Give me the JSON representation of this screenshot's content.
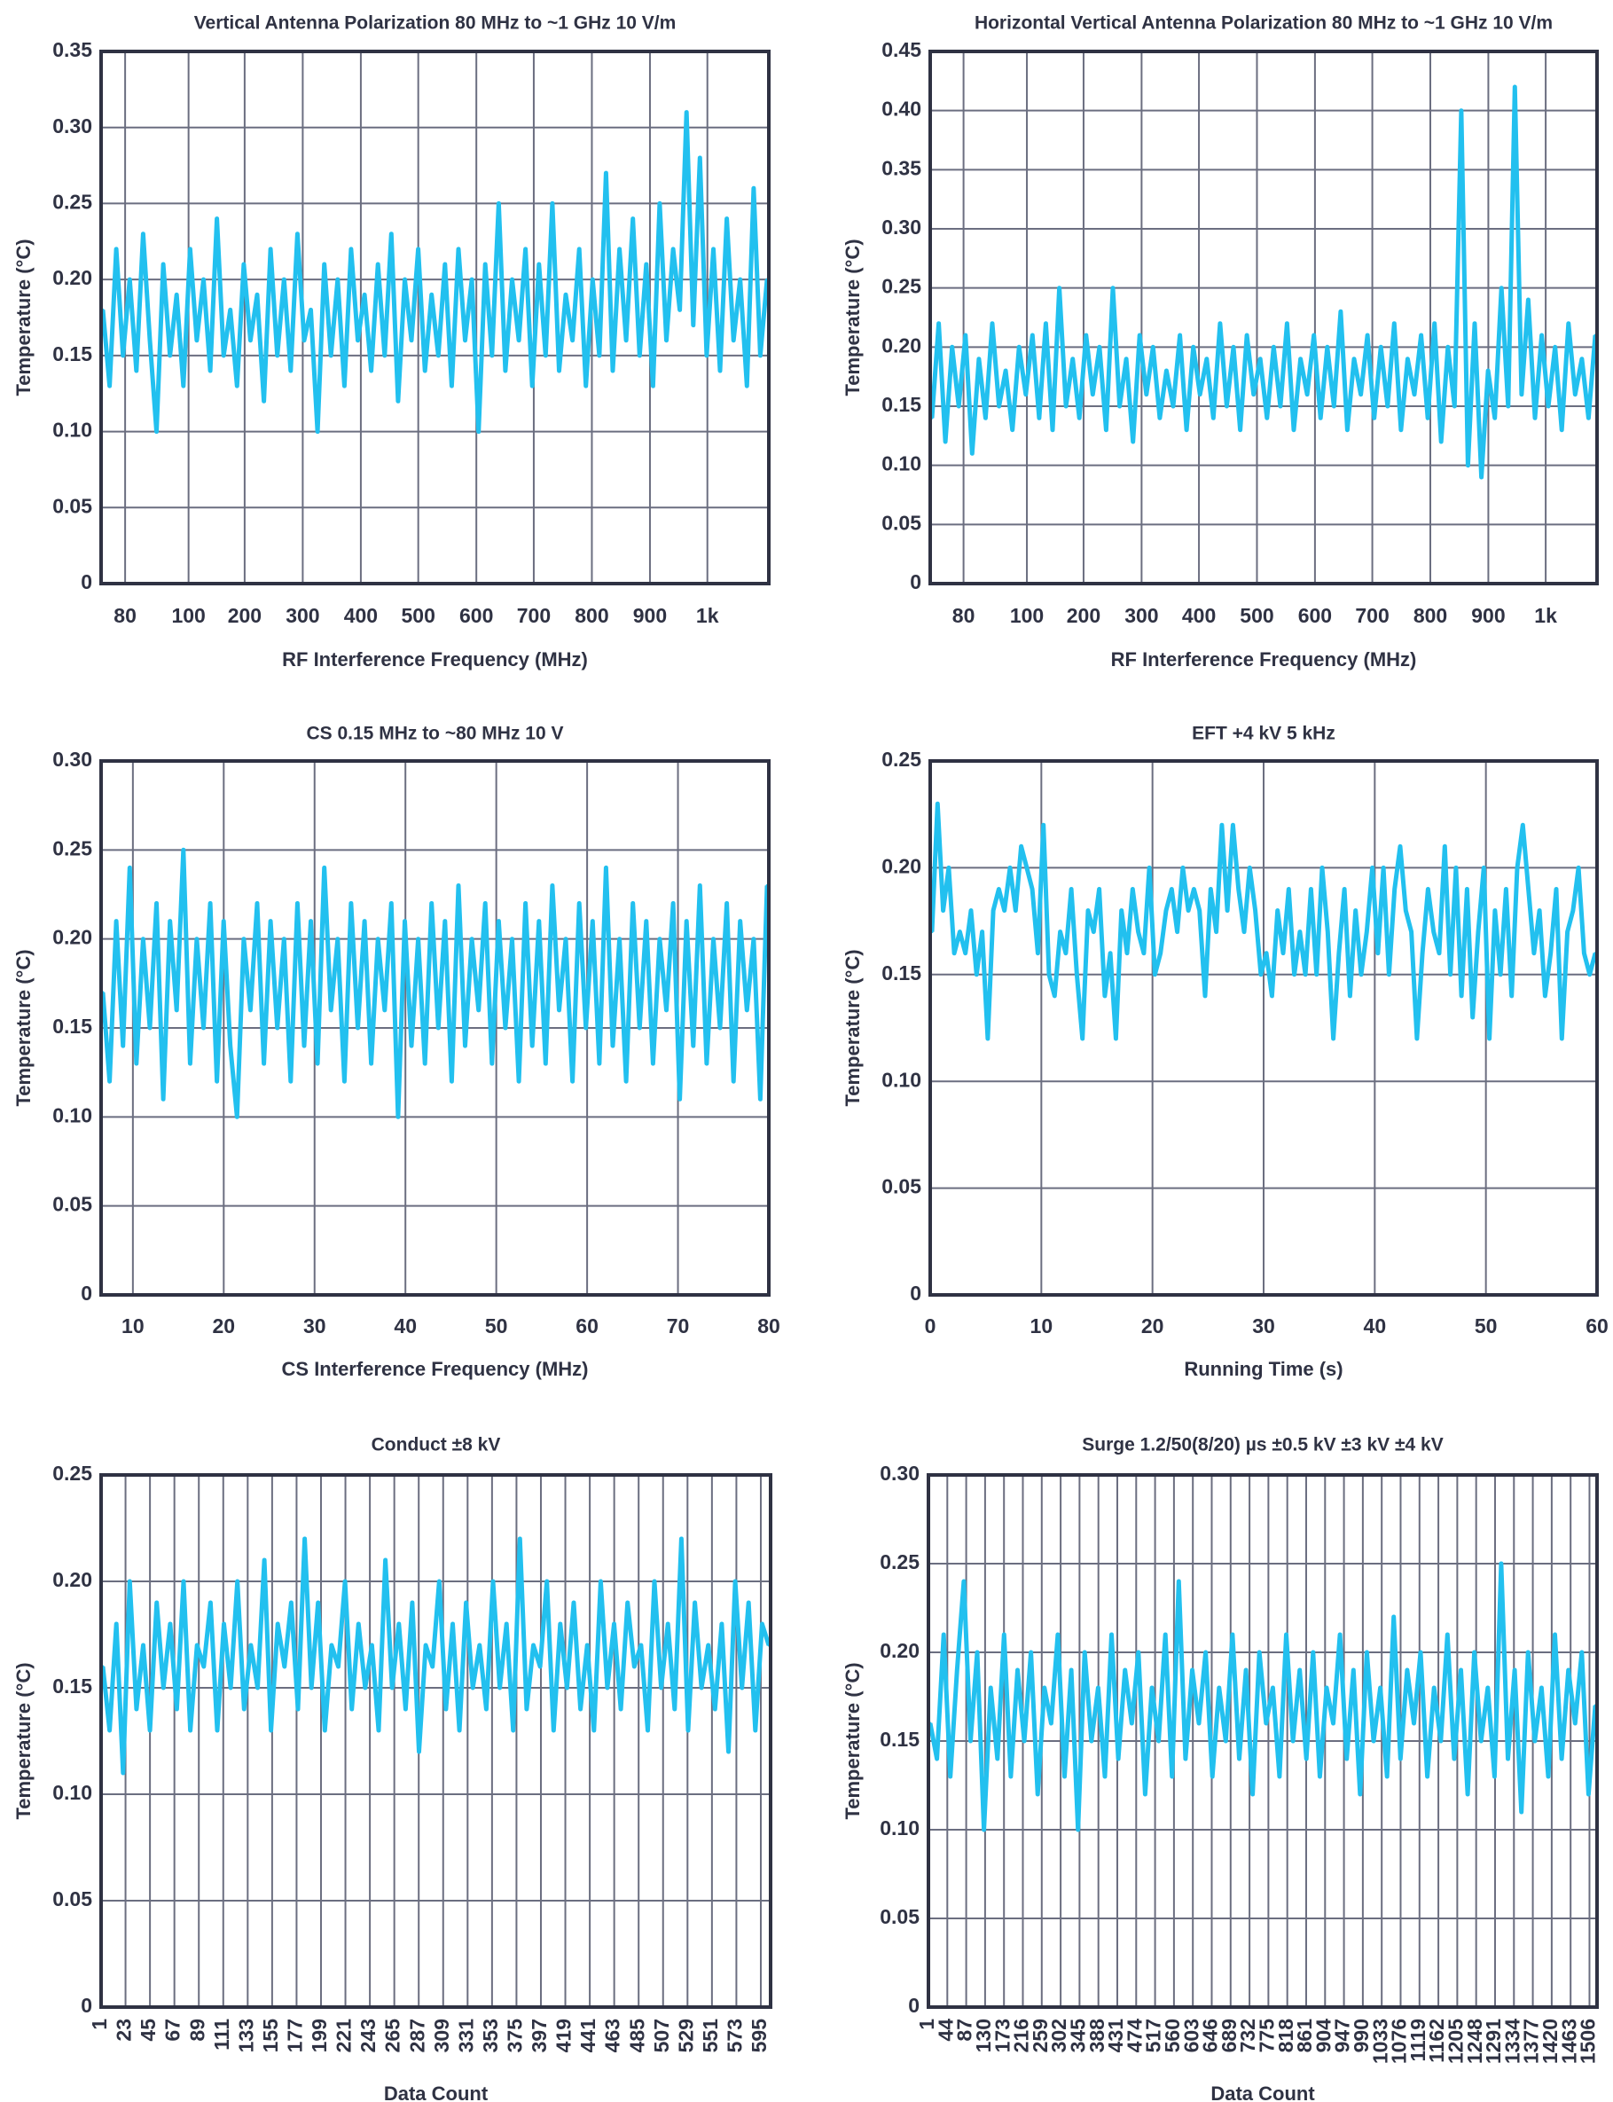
{
  "colors": {
    "series": "#22c0ef",
    "grid": "#6b6e80",
    "axis": "#2f3243"
  },
  "chart_data": [
    {
      "type": "line",
      "title": "Vertical Antenna Polarization 80 MHz to ~1 GHz 10 V/m",
      "xlabel": "RF Interference Frequency (MHz)",
      "ylabel": "Temperature (°C)",
      "x_ticks": [
        "80",
        "100",
        "200",
        "300",
        "400",
        "500",
        "600",
        "700",
        "800",
        "900",
        "1k"
      ],
      "y_ticks": [
        "0",
        "0.05",
        "0.10",
        "0.15",
        "0.20",
        "0.25",
        "0.30",
        "0.35"
      ],
      "ylim": [
        0,
        0.35
      ],
      "grid": true,
      "values": [
        0.18,
        0.13,
        0.22,
        0.15,
        0.2,
        0.14,
        0.23,
        0.16,
        0.1,
        0.21,
        0.15,
        0.19,
        0.13,
        0.22,
        0.16,
        0.2,
        0.14,
        0.24,
        0.15,
        0.18,
        0.13,
        0.21,
        0.16,
        0.19,
        0.12,
        0.22,
        0.15,
        0.2,
        0.14,
        0.23,
        0.16,
        0.18,
        0.1,
        0.21,
        0.15,
        0.2,
        0.13,
        0.22,
        0.16,
        0.19,
        0.14,
        0.21,
        0.15,
        0.23,
        0.12,
        0.2,
        0.16,
        0.22,
        0.14,
        0.19,
        0.15,
        0.21,
        0.13,
        0.22,
        0.16,
        0.2,
        0.1,
        0.21,
        0.15,
        0.25,
        0.14,
        0.2,
        0.16,
        0.22,
        0.13,
        0.21,
        0.15,
        0.25,
        0.14,
        0.19,
        0.16,
        0.22,
        0.13,
        0.2,
        0.15,
        0.27,
        0.14,
        0.22,
        0.16,
        0.24,
        0.15,
        0.21,
        0.13,
        0.25,
        0.16,
        0.22,
        0.18,
        0.31,
        0.17,
        0.28,
        0.15,
        0.22,
        0.14,
        0.24,
        0.16,
        0.2,
        0.13,
        0.26,
        0.15,
        0.2
      ]
    },
    {
      "type": "line",
      "title": "Horizontal Vertical Antenna Polarization 80 MHz to ~1 GHz 10 V/m",
      "xlabel": "RF Interference Frequency (MHz)",
      "ylabel": "Temperature (°C)",
      "x_ticks": [
        "80",
        "100",
        "200",
        "300",
        "400",
        "500",
        "600",
        "700",
        "800",
        "900",
        "1k"
      ],
      "y_ticks": [
        "0",
        "0.05",
        "0.10",
        "0.15",
        "0.20",
        "0.25",
        "0.30",
        "0.35",
        "0.40",
        "0.45"
      ],
      "ylim": [
        0,
        0.45
      ],
      "grid": true,
      "values": [
        0.14,
        0.22,
        0.12,
        0.2,
        0.15,
        0.21,
        0.11,
        0.19,
        0.14,
        0.22,
        0.15,
        0.18,
        0.13,
        0.2,
        0.16,
        0.21,
        0.14,
        0.22,
        0.13,
        0.25,
        0.15,
        0.19,
        0.14,
        0.21,
        0.16,
        0.2,
        0.13,
        0.25,
        0.15,
        0.19,
        0.12,
        0.21,
        0.16,
        0.2,
        0.14,
        0.18,
        0.15,
        0.21,
        0.13,
        0.2,
        0.16,
        0.19,
        0.14,
        0.22,
        0.15,
        0.2,
        0.13,
        0.21,
        0.16,
        0.19,
        0.14,
        0.2,
        0.15,
        0.22,
        0.13,
        0.19,
        0.16,
        0.21,
        0.14,
        0.2,
        0.15,
        0.23,
        0.13,
        0.19,
        0.16,
        0.21,
        0.14,
        0.2,
        0.15,
        0.22,
        0.13,
        0.19,
        0.16,
        0.21,
        0.14,
        0.22,
        0.12,
        0.2,
        0.15,
        0.4,
        0.1,
        0.22,
        0.09,
        0.18,
        0.14,
        0.25,
        0.15,
        0.42,
        0.16,
        0.24,
        0.14,
        0.21,
        0.15,
        0.2,
        0.13,
        0.22,
        0.16,
        0.19,
        0.14,
        0.21
      ]
    },
    {
      "type": "line",
      "title": "CS 0.15 MHz to ~80 MHz 10 V",
      "xlabel": "CS Interference Frequency (MHz)",
      "ylabel": "Temperature (°C)",
      "x_ticks": [
        "10",
        "20",
        "30",
        "40",
        "50",
        "60",
        "70",
        "80"
      ],
      "y_ticks": [
        "0",
        "0.05",
        "0.10",
        "0.15",
        "0.20",
        "0.25",
        "0.30"
      ],
      "xlim": [
        6.5,
        80
      ],
      "ylim": [
        0,
        0.3
      ],
      "grid": true,
      "values": [
        0.17,
        0.12,
        0.21,
        0.14,
        0.24,
        0.13,
        0.2,
        0.15,
        0.22,
        0.11,
        0.21,
        0.16,
        0.25,
        0.13,
        0.2,
        0.15,
        0.22,
        0.12,
        0.21,
        0.14,
        0.1,
        0.2,
        0.16,
        0.22,
        0.13,
        0.21,
        0.15,
        0.2,
        0.12,
        0.22,
        0.14,
        0.21,
        0.13,
        0.24,
        0.16,
        0.2,
        0.12,
        0.22,
        0.15,
        0.21,
        0.13,
        0.2,
        0.16,
        0.22,
        0.1,
        0.21,
        0.14,
        0.2,
        0.13,
        0.22,
        0.15,
        0.21,
        0.12,
        0.23,
        0.14,
        0.2,
        0.16,
        0.22,
        0.13,
        0.21,
        0.15,
        0.2,
        0.12,
        0.22,
        0.14,
        0.21,
        0.13,
        0.23,
        0.16,
        0.2,
        0.12,
        0.22,
        0.15,
        0.21,
        0.13,
        0.24,
        0.14,
        0.2,
        0.12,
        0.22,
        0.15,
        0.21,
        0.13,
        0.2,
        0.16,
        0.22,
        0.11,
        0.21,
        0.14,
        0.23,
        0.13,
        0.2,
        0.15,
        0.22,
        0.12,
        0.21,
        0.16,
        0.2,
        0.11,
        0.23
      ]
    },
    {
      "type": "line",
      "title": "EFT +4 kV 5 kHz",
      "xlabel": "Running Time (s)",
      "ylabel": "Temperature (°C)",
      "x_ticks": [
        "0",
        "10",
        "20",
        "30",
        "40",
        "50",
        "60"
      ],
      "y_ticks": [
        "0",
        "0.05",
        "0.10",
        "0.15",
        "0.20",
        "0.25"
      ],
      "xlim": [
        0,
        60
      ],
      "ylim": [
        0,
        0.25
      ],
      "grid": true,
      "values": [
        0.17,
        0.23,
        0.18,
        0.2,
        0.16,
        0.17,
        0.16,
        0.18,
        0.15,
        0.17,
        0.12,
        0.18,
        0.19,
        0.18,
        0.2,
        0.18,
        0.21,
        0.2,
        0.19,
        0.16,
        0.22,
        0.15,
        0.14,
        0.17,
        0.16,
        0.19,
        0.15,
        0.12,
        0.18,
        0.17,
        0.19,
        0.14,
        0.16,
        0.12,
        0.18,
        0.16,
        0.19,
        0.17,
        0.16,
        0.2,
        0.15,
        0.16,
        0.18,
        0.19,
        0.17,
        0.2,
        0.18,
        0.19,
        0.18,
        0.14,
        0.19,
        0.17,
        0.22,
        0.18,
        0.22,
        0.19,
        0.17,
        0.2,
        0.18,
        0.15,
        0.16,
        0.14,
        0.18,
        0.16,
        0.19,
        0.15,
        0.17,
        0.15,
        0.19,
        0.15,
        0.2,
        0.17,
        0.12,
        0.16,
        0.19,
        0.14,
        0.18,
        0.15,
        0.17,
        0.2,
        0.16,
        0.2,
        0.15,
        0.19,
        0.21,
        0.18,
        0.17,
        0.12,
        0.16,
        0.19,
        0.17,
        0.16,
        0.21,
        0.15,
        0.2,
        0.14,
        0.19,
        0.13,
        0.17,
        0.2,
        0.12,
        0.18,
        0.15,
        0.19,
        0.14,
        0.2,
        0.22,
        0.19,
        0.16,
        0.18,
        0.14,
        0.16,
        0.19,
        0.12,
        0.17,
        0.18,
        0.2,
        0.16,
        0.15,
        0.16
      ]
    },
    {
      "type": "line",
      "title": "Conduct ±8 kV",
      "xlabel": "Data Count",
      "ylabel": "Temperature (°C)",
      "x_ticks": [
        "1",
        "23",
        "45",
        "67",
        "89",
        "111",
        "133",
        "155",
        "177",
        "199",
        "221",
        "243",
        "265",
        "287",
        "309",
        "331",
        "353",
        "375",
        "397",
        "419",
        "441",
        "463",
        "485",
        "507",
        "529",
        "551",
        "573",
        "595"
      ],
      "y_ticks": [
        "0",
        "0.05",
        "0.10",
        "0.15",
        "0.20",
        "0.25"
      ],
      "ylim": [
        0,
        0.25
      ],
      "grid": true,
      "values": [
        0.16,
        0.13,
        0.18,
        0.11,
        0.2,
        0.14,
        0.17,
        0.13,
        0.19,
        0.15,
        0.18,
        0.14,
        0.2,
        0.13,
        0.17,
        0.16,
        0.19,
        0.13,
        0.18,
        0.15,
        0.2,
        0.14,
        0.17,
        0.15,
        0.21,
        0.13,
        0.18,
        0.16,
        0.19,
        0.14,
        0.22,
        0.15,
        0.19,
        0.13,
        0.17,
        0.16,
        0.2,
        0.14,
        0.18,
        0.15,
        0.17,
        0.13,
        0.21,
        0.15,
        0.18,
        0.14,
        0.19,
        0.12,
        0.17,
        0.16,
        0.2,
        0.14,
        0.18,
        0.13,
        0.19,
        0.15,
        0.17,
        0.14,
        0.2,
        0.15,
        0.18,
        0.13,
        0.22,
        0.14,
        0.17,
        0.16,
        0.2,
        0.13,
        0.18,
        0.15,
        0.19,
        0.14,
        0.17,
        0.13,
        0.2,
        0.15,
        0.18,
        0.14,
        0.19,
        0.16,
        0.17,
        0.13,
        0.2,
        0.15,
        0.18,
        0.14,
        0.22,
        0.13,
        0.19,
        0.15,
        0.17,
        0.14,
        0.18,
        0.12,
        0.2,
        0.15,
        0.19,
        0.13,
        0.18,
        0.17
      ]
    },
    {
      "type": "line",
      "title": "Surge 1.2/50(8/20) µs ±0.5 kV ±3 kV ±4 kV",
      "xlabel": "Data Count",
      "ylabel": "Temperature (°C)",
      "x_ticks": [
        "1",
        "44",
        "87",
        "130",
        "173",
        "216",
        "259",
        "302",
        "345",
        "388",
        "431",
        "474",
        "517",
        "560",
        "603",
        "646",
        "689",
        "732",
        "775",
        "818",
        "861",
        "904",
        "947",
        "990",
        "1033",
        "1076",
        "1119",
        "1162",
        "1205",
        "1248",
        "1291",
        "1334",
        "1377",
        "1420",
        "1463",
        "1506"
      ],
      "y_ticks": [
        "0",
        "0.05",
        "0.10",
        "0.15",
        "0.20",
        "0.25",
        "0.30"
      ],
      "ylim": [
        0,
        0.3
      ],
      "grid": true,
      "values": [
        0.16,
        0.14,
        0.21,
        0.13,
        0.19,
        0.24,
        0.15,
        0.2,
        0.1,
        0.18,
        0.14,
        0.21,
        0.13,
        0.19,
        0.15,
        0.2,
        0.12,
        0.18,
        0.16,
        0.21,
        0.13,
        0.19,
        0.1,
        0.2,
        0.15,
        0.18,
        0.13,
        0.21,
        0.14,
        0.19,
        0.16,
        0.2,
        0.12,
        0.18,
        0.15,
        0.21,
        0.13,
        0.24,
        0.14,
        0.19,
        0.16,
        0.2,
        0.13,
        0.18,
        0.15,
        0.21,
        0.14,
        0.19,
        0.12,
        0.2,
        0.16,
        0.18,
        0.13,
        0.21,
        0.15,
        0.19,
        0.14,
        0.2,
        0.13,
        0.18,
        0.16,
        0.21,
        0.14,
        0.19,
        0.12,
        0.2,
        0.15,
        0.18,
        0.13,
        0.22,
        0.14,
        0.19,
        0.16,
        0.2,
        0.13,
        0.18,
        0.15,
        0.21,
        0.14,
        0.19,
        0.12,
        0.2,
        0.15,
        0.18,
        0.13,
        0.25,
        0.14,
        0.19,
        0.11,
        0.2,
        0.15,
        0.18,
        0.13,
        0.21,
        0.14,
        0.19,
        0.16,
        0.2,
        0.12,
        0.17
      ]
    }
  ]
}
